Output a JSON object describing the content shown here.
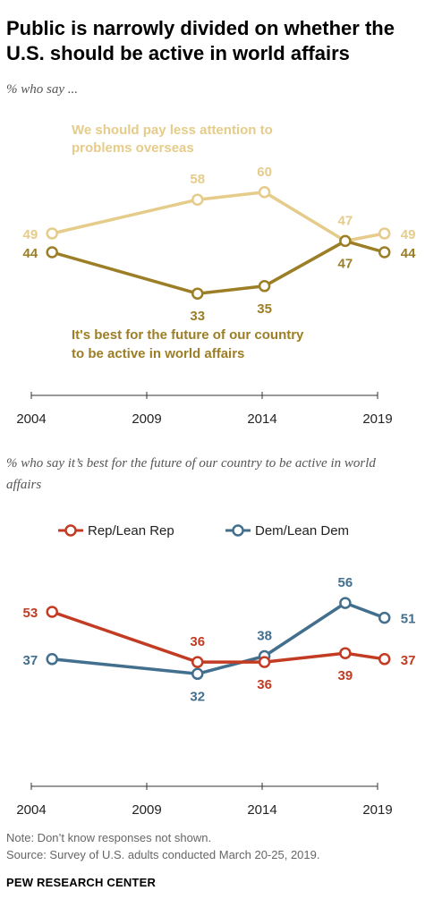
{
  "title": "Public is narrowly divided on whether the U.S. should be active in world affairs",
  "chart1": {
    "subtitle": "% who say ..."
  },
  "chart2": {
    "subtitle": "% who say it’s best for the future of our country to be active in world affairs"
  },
  "note": "Note: Don’t know responses not shown.",
  "source": "Source: Survey of U.S. adults conducted March 20-25, 2019.",
  "brand": "PEW RESEARCH CENTER",
  "colors": {
    "less_attention": "#e6cc8a",
    "be_active": "#9c7e26",
    "rep": "#c23b22",
    "dem": "#436f8e",
    "axis": "#333333",
    "tick_text": "#222222"
  },
  "chart_data": [
    {
      "type": "line",
      "x_ticks": [
        "2004",
        "2009",
        "2014",
        "2019"
      ],
      "xlim": [
        2004,
        2019
      ],
      "series": [
        {
          "name": "We should pay less attention to problems overseas",
          "x": [
            2004.9,
            2011.2,
            2014.1,
            2017.6,
            2019.3
          ],
          "values": [
            49,
            58,
            60,
            47,
            49
          ]
        },
        {
          "name": "It's best for the future of our country to be active in world affairs",
          "x": [
            2004.9,
            2011.2,
            2014.1,
            2017.6,
            2019.3
          ],
          "values": [
            44,
            33,
            35,
            47,
            44
          ]
        }
      ]
    },
    {
      "type": "line",
      "x_ticks": [
        "2004",
        "2009",
        "2014",
        "2019"
      ],
      "xlim": [
        2004,
        2019
      ],
      "legend_position": "top",
      "series": [
        {
          "name": "Rep/Lean Rep",
          "x": [
            2004.9,
            2011.2,
            2014.1,
            2017.6,
            2019.3
          ],
          "values": [
            53,
            36,
            36,
            39,
            37
          ]
        },
        {
          "name": "Dem/Lean Dem",
          "x": [
            2004.9,
            2011.2,
            2014.1,
            2017.6,
            2019.3
          ],
          "values": [
            37,
            32,
            38,
            56,
            51
          ]
        }
      ]
    }
  ]
}
